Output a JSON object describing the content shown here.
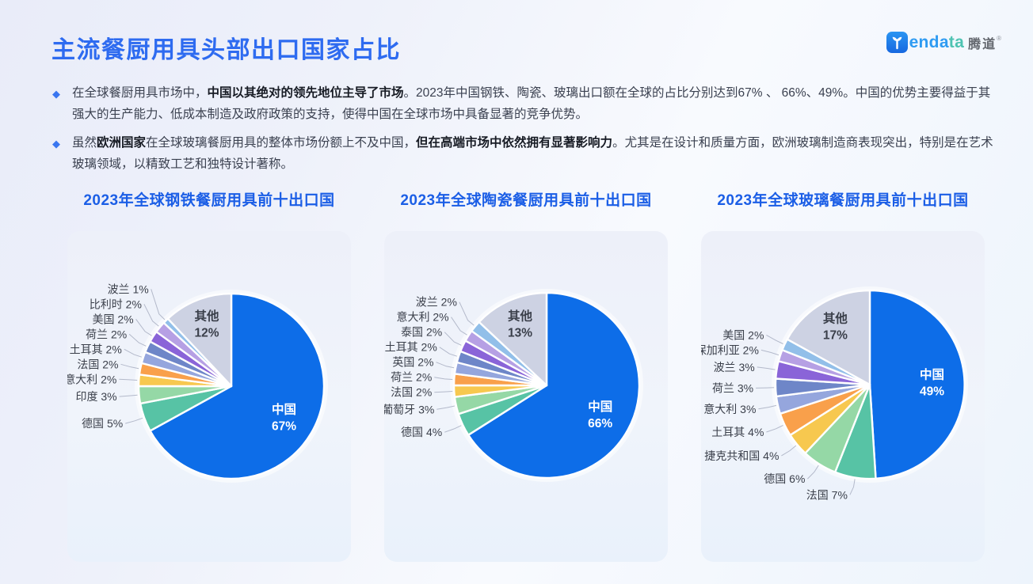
{
  "page": {
    "title": "主流餐厨用具头部出口国家占比"
  },
  "logo": {
    "word_blue": "enda",
    "word_teal": "ta",
    "cn": "腾道",
    "reg": "®"
  },
  "bullet_icon": "◆",
  "bullets": [
    {
      "segments": [
        {
          "text": "在全球餐厨用具市场中，",
          "bold": false
        },
        {
          "text": "中国以其绝对的领先地位主导了市场",
          "bold": true
        },
        {
          "text": "。2023年中国钢铁、陶瓷、玻璃出口额在全球的占比分别达到67% 、 66%、49%。中国的优势主要得益于其强大的生产能力、低成本制造及政府政策的支持，使得中国在全球市场中具备显著的竞争优势。",
          "bold": false
        }
      ]
    },
    {
      "segments": [
        {
          "text": "虽然",
          "bold": false
        },
        {
          "text": "欧洲国家",
          "bold": true
        },
        {
          "text": "在全球玻璃餐厨用具的整体市场份额上不及中国，",
          "bold": false
        },
        {
          "text": "但在高端市场中依然拥有显著影响力",
          "bold": true
        },
        {
          "text": "。尤其是在设计和质量方面，欧洲玻璃制造商表现突出，特别是在艺术玻璃领域，以精致工艺和独特设计著称。",
          "bold": false
        }
      ]
    }
  ],
  "theme": {
    "title_color": "#2e6bf0",
    "chart_title_color": "#1b5ee6",
    "body_text_color": "#3b4150",
    "bullet_diamond_color": "#3a76f0",
    "card_background": "#eef1fa",
    "china_blue": "#0d6de8",
    "label_text_color": "#3a3f4a",
    "leader_line_color": "#b3b9ca"
  },
  "chart_data": [
    {
      "type": "pie",
      "title": "2023年全球钢铁餐厨用具前十出口国",
      "unit": "%",
      "slices": [
        {
          "name": "中国",
          "value": 67,
          "color": "#0d6de8",
          "label_inside": true,
          "label_color": "#ffffff"
        },
        {
          "name": "德国",
          "value": 5,
          "color": "#57c3a5"
        },
        {
          "name": "印度",
          "value": 3,
          "color": "#95d8a6"
        },
        {
          "name": "意大利",
          "value": 2,
          "color": "#f7c84f"
        },
        {
          "name": "法国",
          "value": 2,
          "color": "#f9a04b"
        },
        {
          "name": "土耳其",
          "value": 2,
          "color": "#95a6dd"
        },
        {
          "name": "荷兰",
          "value": 2,
          "color": "#6e86c8"
        },
        {
          "name": "美国",
          "value": 2,
          "color": "#8a64d8"
        },
        {
          "name": "比利时",
          "value": 2,
          "color": "#b6a0e4"
        },
        {
          "name": "波兰",
          "value": 1,
          "color": "#92bfe9"
        },
        {
          "name": "其他",
          "value": 12,
          "color": "#cdd2e3",
          "label_inside": true,
          "label_color": "#3a3f4a"
        }
      ]
    },
    {
      "type": "pie",
      "title": "2023年全球陶瓷餐厨用具前十出口国",
      "unit": "%",
      "slices": [
        {
          "name": "中国",
          "value": 66,
          "color": "#0d6de8",
          "label_inside": true,
          "label_color": "#ffffff"
        },
        {
          "name": "德国",
          "value": 4,
          "color": "#57c3a5"
        },
        {
          "name": "葡萄牙",
          "value": 3,
          "color": "#95d8a6"
        },
        {
          "name": "法国",
          "value": 2,
          "color": "#f7c84f"
        },
        {
          "name": "荷兰",
          "value": 2,
          "color": "#f9a04b"
        },
        {
          "name": "英国",
          "value": 2,
          "color": "#95a6dd"
        },
        {
          "name": "土耳其",
          "value": 2,
          "color": "#6e86c8"
        },
        {
          "name": "泰国",
          "value": 2,
          "color": "#8a64d8"
        },
        {
          "name": "意大利",
          "value": 2,
          "color": "#b6a0e4"
        },
        {
          "name": "波兰",
          "value": 2,
          "color": "#92bfe9"
        },
        {
          "name": "其他",
          "value": 13,
          "color": "#cdd2e3",
          "label_inside": true,
          "label_color": "#3a3f4a"
        }
      ]
    },
    {
      "type": "pie",
      "title": "2023年全球玻璃餐厨用具前十出口国",
      "unit": "%",
      "slices": [
        {
          "name": "中国",
          "value": 49,
          "color": "#0d6de8",
          "label_inside": true,
          "label_color": "#ffffff"
        },
        {
          "name": "法国",
          "value": 7,
          "color": "#57c3a5"
        },
        {
          "name": "德国",
          "value": 6,
          "color": "#95d8a6"
        },
        {
          "name": "捷克共和国",
          "value": 4,
          "color": "#f7c84f"
        },
        {
          "name": "土耳其",
          "value": 4,
          "color": "#f9a04b"
        },
        {
          "name": "意大利",
          "value": 3,
          "color": "#95a6dd"
        },
        {
          "name": "荷兰",
          "value": 3,
          "color": "#6e86c8"
        },
        {
          "name": "波兰",
          "value": 3,
          "color": "#8a64d8"
        },
        {
          "name": "保加利亚",
          "value": 2,
          "color": "#b6a0e4"
        },
        {
          "name": "美国",
          "value": 2,
          "color": "#92bfe9"
        },
        {
          "name": "其他",
          "value": 17,
          "color": "#cdd2e3",
          "label_inside": true,
          "label_color": "#3a3f4a"
        }
      ]
    }
  ]
}
